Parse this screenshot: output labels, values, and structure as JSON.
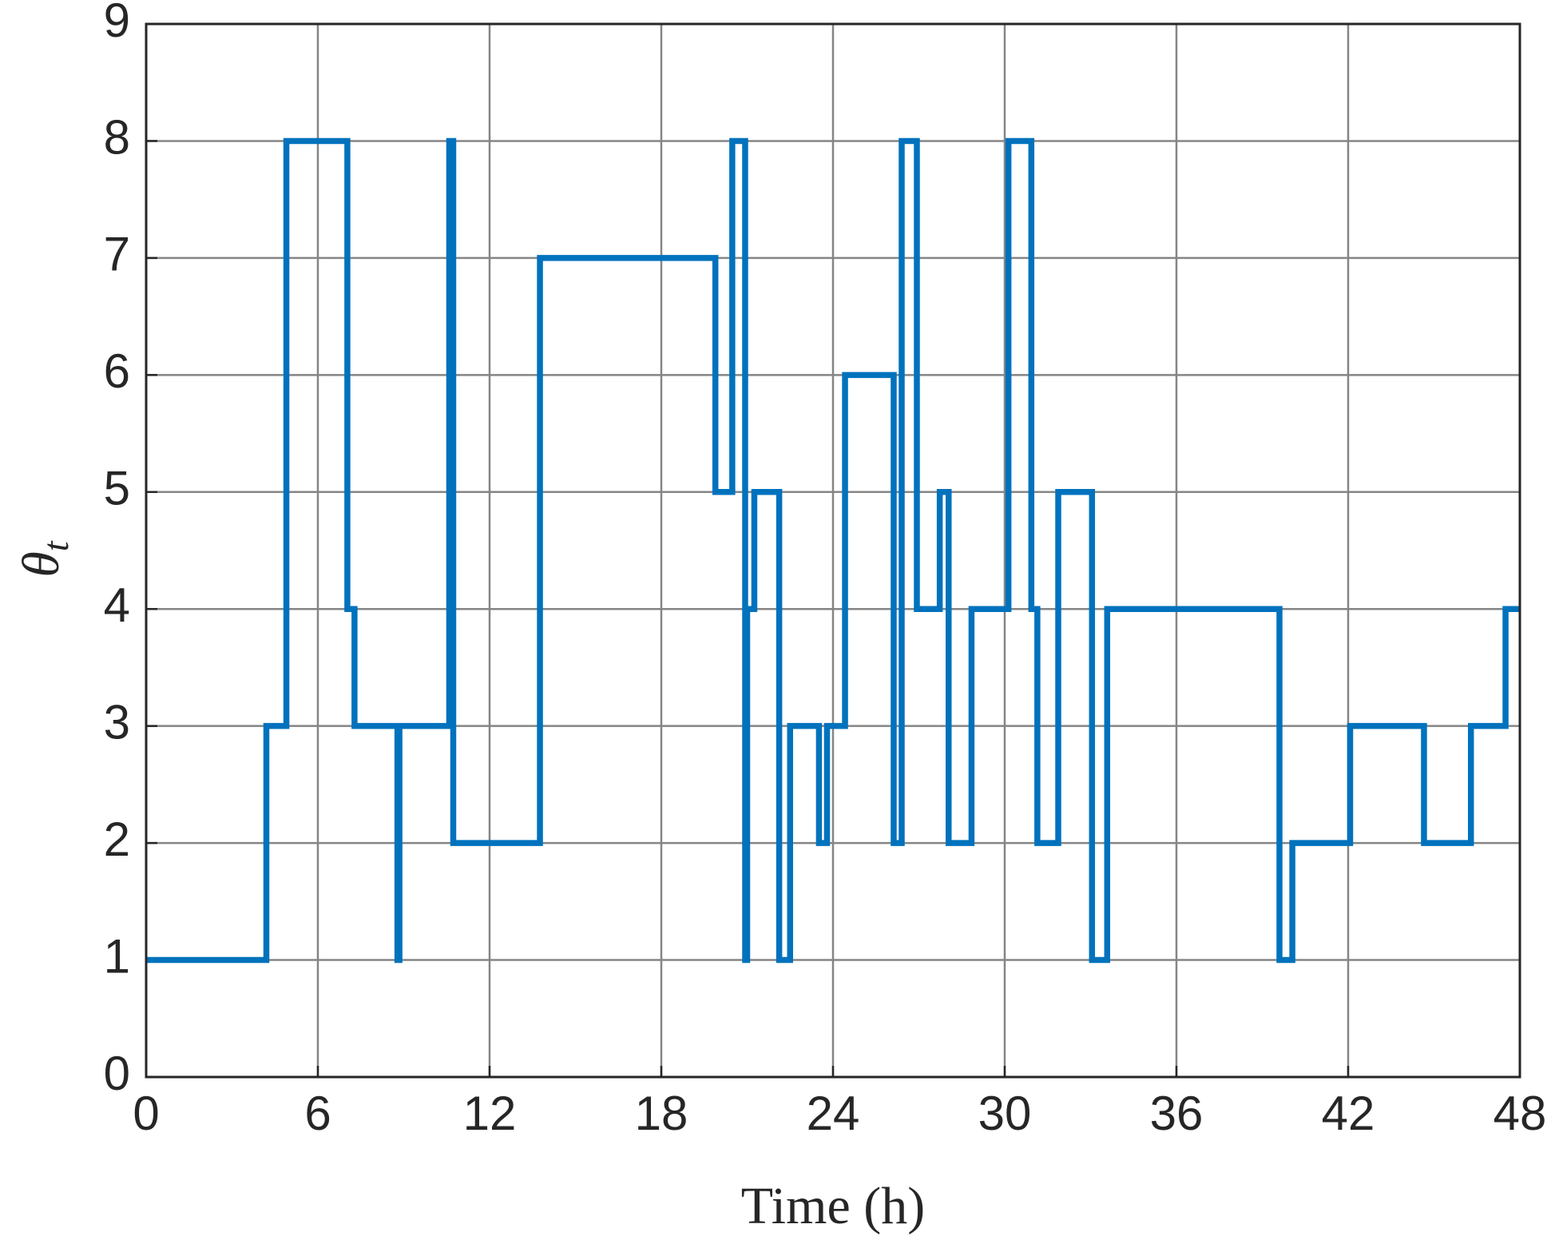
{
  "chart_data": {
    "type": "step",
    "xlabel": "Time (h)",
    "ylabel": {
      "symbol": "θ",
      "subscript": "t"
    },
    "x": [
      0,
      4.2,
      4.9,
      7.03,
      7.28,
      8.78,
      8.85,
      10.59,
      10.73,
      13.76,
      19.89,
      20.48,
      20.93,
      21.0,
      21.25,
      22.12,
      22.5,
      23.51,
      23.79,
      24.42,
      26.12,
      26.4,
      26.93,
      27.73,
      28.04,
      28.84,
      30.13,
      30.93,
      31.14,
      31.87,
      33.05,
      33.58,
      39.6,
      40.05,
      42.07,
      44.65,
      46.29,
      47.5,
      48
    ],
    "series": [
      {
        "name": "theta",
        "color": "#0072bd",
        "values": [
          1,
          3,
          8,
          4,
          3,
          1,
          3,
          8,
          2,
          7,
          5,
          8,
          1,
          4,
          5,
          1,
          3,
          2,
          3,
          6,
          2,
          8,
          4,
          5,
          2,
          4,
          8,
          4,
          2,
          5,
          1,
          4,
          1,
          2,
          3,
          2,
          3,
          4,
          4
        ]
      }
    ],
    "xlim": [
      0,
      48
    ],
    "xticks": [
      0,
      6,
      12,
      18,
      24,
      30,
      36,
      42,
      48
    ],
    "ylim": [
      0,
      9
    ],
    "yticks": [
      0,
      1,
      2,
      3,
      4,
      5,
      6,
      7,
      8,
      9
    ],
    "grid": true
  }
}
